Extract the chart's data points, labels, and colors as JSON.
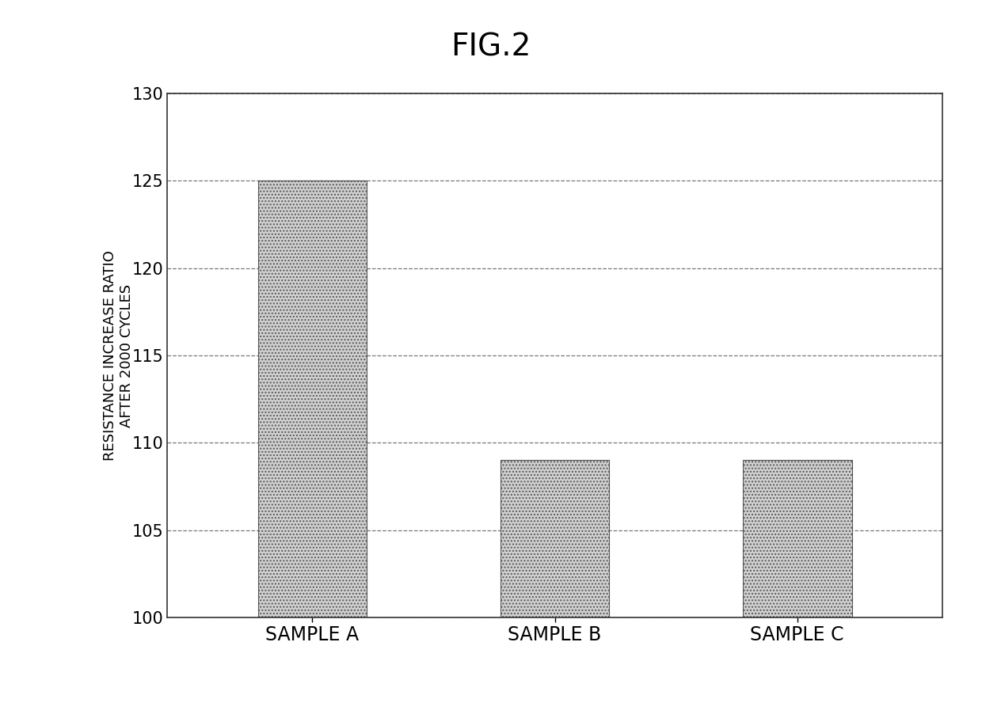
{
  "title": "FIG.2",
  "categories": [
    "SAMPLE A",
    "SAMPLE B",
    "SAMPLE C"
  ],
  "values": [
    125,
    109,
    109
  ],
  "ylabel_line1": "RESISTANCE INCREASE RATIO",
  "ylabel_line2": "AFTER 2000 CYCLES",
  "ylim": [
    100,
    130
  ],
  "yticks": [
    100,
    105,
    110,
    115,
    120,
    125,
    130
  ],
  "bar_color": "#d0d0d0",
  "bar_hatch": "....",
  "bar_edgecolor": "#555555",
  "background_color": "#ffffff",
  "grid_color": "#555555",
  "title_fontsize": 28,
  "axis_label_fontsize": 13,
  "tick_fontsize": 15,
  "xtick_fontsize": 17,
  "bar_width": 0.45,
  "xlim": [
    -0.6,
    2.6
  ]
}
